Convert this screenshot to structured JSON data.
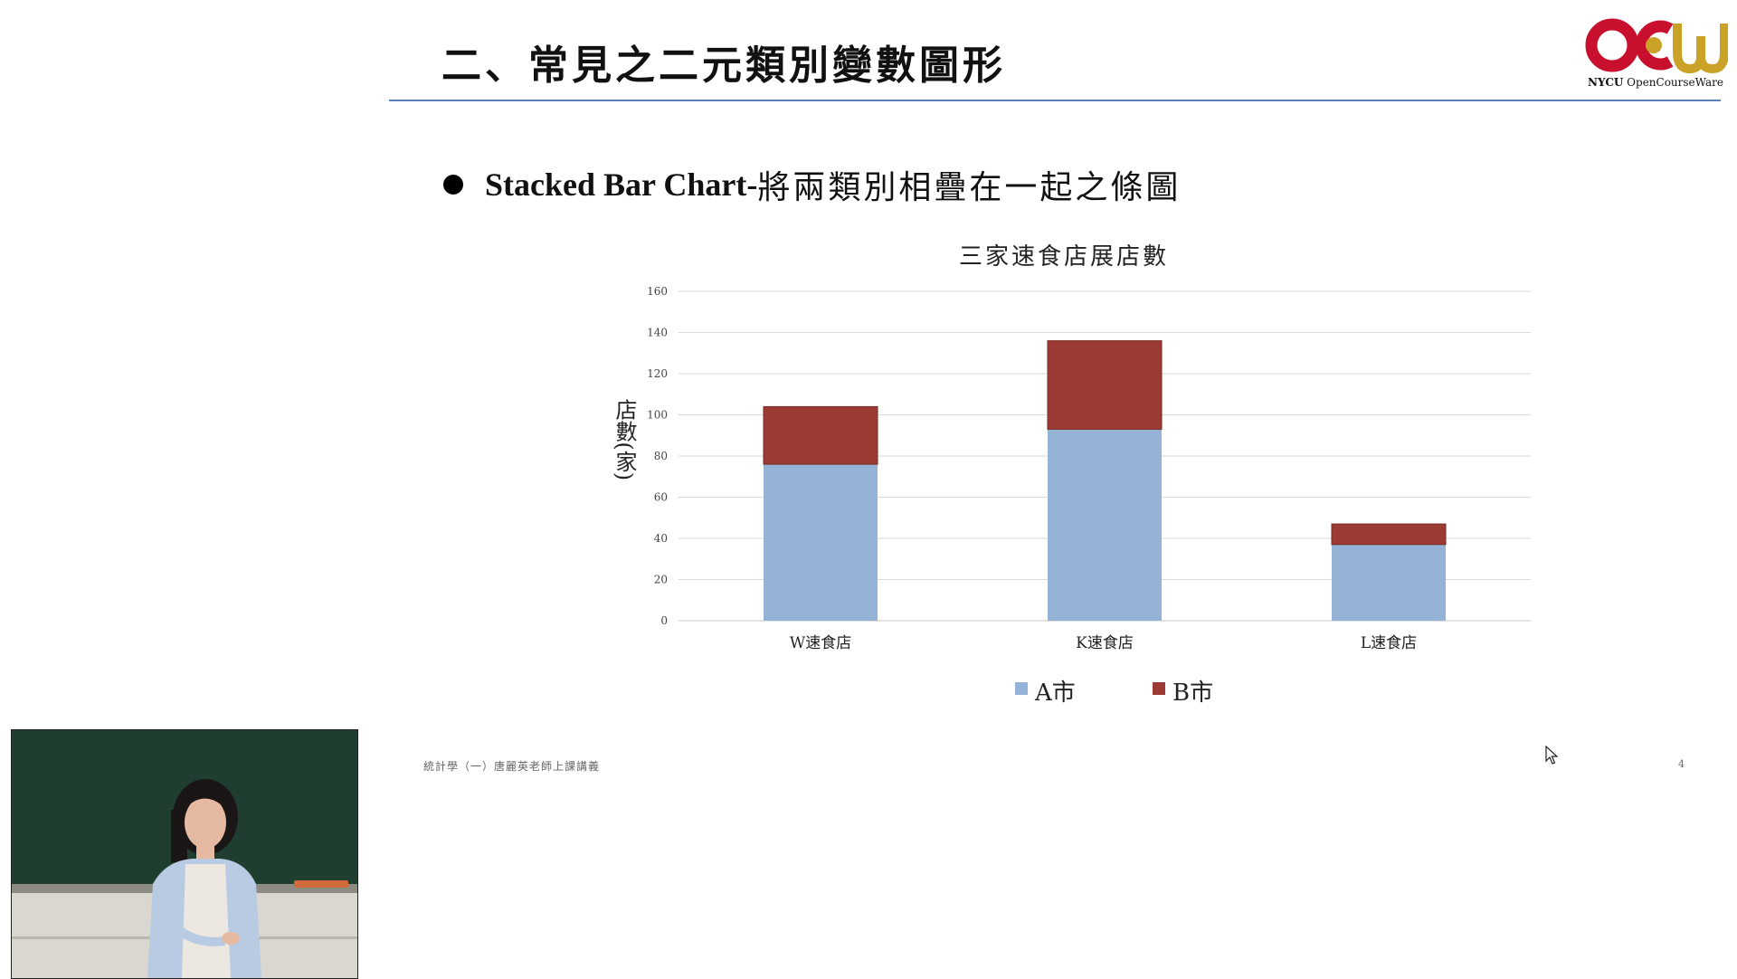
{
  "slide": {
    "title": "二、常見之二元類別變數圖形",
    "bullet_strong": "Stacked Bar Chart-",
    "bullet_rest": "將兩類別相疊在一起之條圖",
    "footer": "統計學（一）唐麗英老師上課講義",
    "page_number": "4"
  },
  "logo": {
    "name": "OCW",
    "caption_strong": "NYCU",
    "caption_rest": "OpenCourseWare",
    "colors": {
      "red": "#c8102e",
      "gold": "#c9a227"
    }
  },
  "video": {
    "subject": "lecturer"
  },
  "chart_data": {
    "type": "bar",
    "stacked": true,
    "title": "三家速食店展店數",
    "xlabel": "",
    "ylabel": "店數(家)",
    "categories": [
      "W速食店",
      "K速食店",
      "L速食店"
    ],
    "series": [
      {
        "name": "A市",
        "values": [
          76,
          93,
          37
        ],
        "color": "#95b3d7"
      },
      {
        "name": "B市",
        "values": [
          28,
          43,
          10
        ],
        "color": "#9c3b33"
      }
    ],
    "ylim": [
      0,
      160
    ],
    "yticks": [
      0,
      20,
      40,
      60,
      80,
      100,
      120,
      140,
      160
    ],
    "grid": true,
    "legend": "bottom-center"
  }
}
